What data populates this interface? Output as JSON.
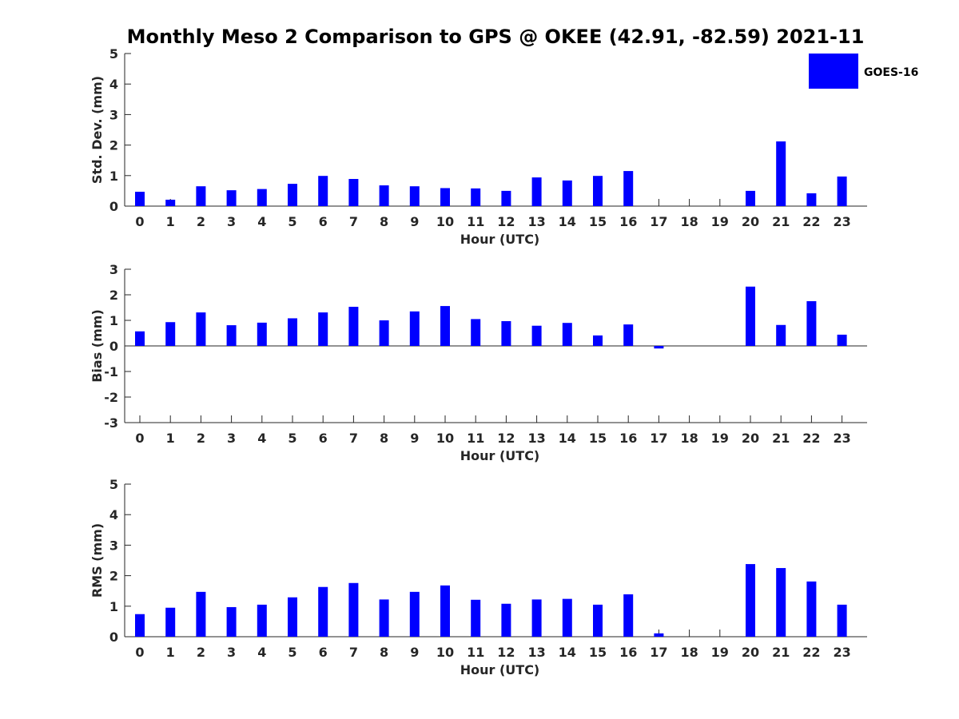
{
  "title": "Monthly Meso 2 Comparison to GPS @ OKEE (42.91, -82.59) 2021-11",
  "colors": {
    "bar": "#0000ff",
    "axis": "#262626"
  },
  "legend": {
    "label": "GOES-16",
    "placement": "top-right"
  },
  "chart_data": [
    {
      "type": "bar",
      "categories": [
        "0",
        "1",
        "2",
        "3",
        "4",
        "5",
        "6",
        "7",
        "8",
        "9",
        "10",
        "11",
        "12",
        "13",
        "14",
        "15",
        "16",
        "17",
        "18",
        "19",
        "20",
        "21",
        "22",
        "23"
      ],
      "series": [
        {
          "name": "GOES-16",
          "values": [
            0.47,
            0.21,
            0.65,
            0.52,
            0.56,
            0.73,
            0.99,
            0.89,
            0.68,
            0.65,
            0.59,
            0.58,
            0.5,
            0.94,
            0.84,
            0.99,
            1.15,
            0,
            0,
            0,
            0.5,
            2.12,
            0.42,
            0.97
          ]
        }
      ],
      "xlabel": "Hour (UTC)",
      "ylabel": "Std. Dev. (mm)",
      "ylim": [
        0,
        5
      ],
      "yticks": [
        0,
        1,
        2,
        3,
        4,
        5
      ],
      "grid": false
    },
    {
      "type": "bar",
      "categories": [
        "0",
        "1",
        "2",
        "3",
        "4",
        "5",
        "6",
        "7",
        "8",
        "9",
        "10",
        "11",
        "12",
        "13",
        "14",
        "15",
        "16",
        "17",
        "18",
        "19",
        "20",
        "21",
        "22",
        "23"
      ],
      "series": [
        {
          "name": "GOES-16",
          "values": [
            0.57,
            0.93,
            1.31,
            0.81,
            0.91,
            1.08,
            1.31,
            1.53,
            1.0,
            1.35,
            1.56,
            1.05,
            0.97,
            0.79,
            0.9,
            0.41,
            0.84,
            -0.1,
            0,
            0,
            2.32,
            0.82,
            1.75,
            0.44
          ]
        }
      ],
      "xlabel": "Hour (UTC)",
      "ylabel": "Bias (mm)",
      "ylim": [
        -3,
        3
      ],
      "yticks": [
        -3,
        -2,
        -1,
        0,
        1,
        2,
        3
      ],
      "grid": false
    },
    {
      "type": "bar",
      "categories": [
        "0",
        "1",
        "2",
        "3",
        "4",
        "5",
        "6",
        "7",
        "8",
        "9",
        "10",
        "11",
        "12",
        "13",
        "14",
        "15",
        "16",
        "17",
        "18",
        "19",
        "20",
        "21",
        "22",
        "23"
      ],
      "series": [
        {
          "name": "GOES-16",
          "values": [
            0.74,
            0.95,
            1.47,
            0.97,
            1.05,
            1.29,
            1.63,
            1.76,
            1.22,
            1.47,
            1.68,
            1.21,
            1.08,
            1.22,
            1.24,
            1.05,
            1.39,
            0.11,
            0,
            0,
            2.38,
            2.25,
            1.81,
            1.05
          ]
        }
      ],
      "xlabel": "Hour (UTC)",
      "ylabel": "RMS (mm)",
      "ylim": [
        0,
        5
      ],
      "yticks": [
        0,
        1,
        2,
        3,
        4,
        5
      ],
      "grid": false
    }
  ]
}
